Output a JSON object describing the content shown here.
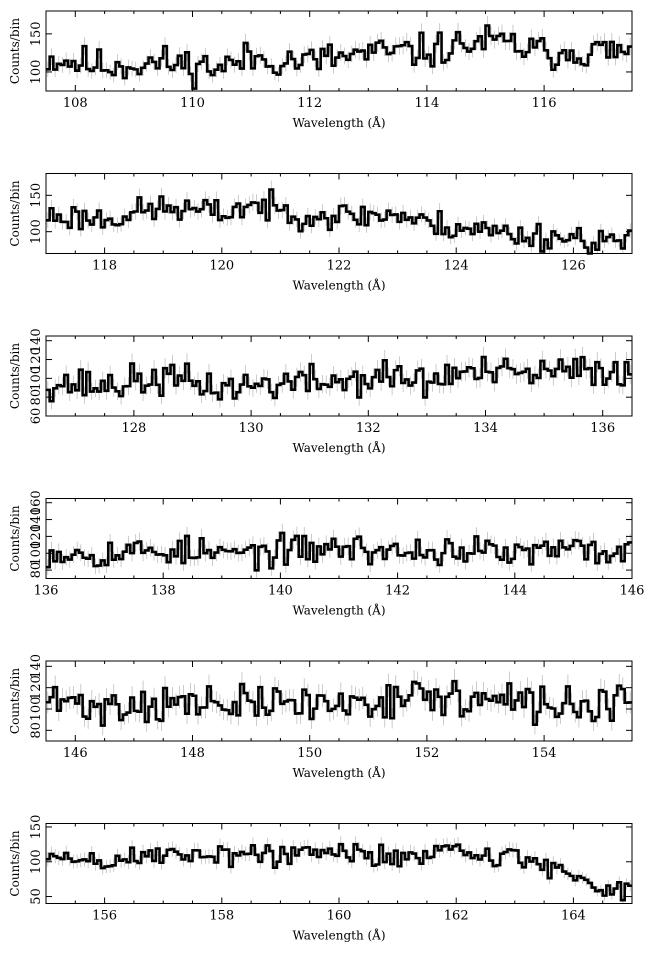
{
  "colors": {
    "line": "#000000",
    "error_bar": "#b5b5b5",
    "background": "#ffffff"
  },
  "chart_data": [
    {
      "type": "line",
      "style": "step",
      "xlabel": "Wavelength (Å)",
      "ylabel": "Counts/bin",
      "xlim": [
        107.5,
        117.5
      ],
      "ylim": [
        75,
        180
      ],
      "xticks": [
        108,
        110,
        112,
        114,
        116
      ],
      "yticks": [
        100,
        150
      ],
      "bin_width": 0.0625,
      "error_bars": true,
      "anchors": [
        [
          107.5,
          118
        ],
        [
          108.5,
          108
        ],
        [
          109.5,
          112
        ],
        [
          110.5,
          106
        ],
        [
          111.0,
          118
        ],
        [
          112.0,
          114
        ],
        [
          113.0,
          124
        ],
        [
          114.0,
          127
        ],
        [
          115.0,
          140
        ],
        [
          115.5,
          135
        ],
        [
          116.0,
          124
        ],
        [
          116.5,
          128
        ],
        [
          117.0,
          127
        ],
        [
          117.5,
          125
        ]
      ],
      "noise": 14,
      "seed": 11
    },
    {
      "type": "line",
      "style": "step",
      "xlabel": "Wavelength (Å)",
      "ylabel": "Counts/bin",
      "xlim": [
        117,
        127
      ],
      "ylim": [
        70,
        180
      ],
      "xticks": [
        118,
        120,
        122,
        124,
        126
      ],
      "yticks": [
        100,
        150
      ],
      "bin_width": 0.0625,
      "error_bars": true,
      "anchors": [
        [
          117.0,
          122
        ],
        [
          118.0,
          118
        ],
        [
          119.0,
          133
        ],
        [
          120.0,
          125
        ],
        [
          120.5,
          138
        ],
        [
          121.0,
          128
        ],
        [
          122.0,
          121
        ],
        [
          123.0,
          124
        ],
        [
          123.5,
          110
        ],
        [
          124.0,
          108
        ],
        [
          125.0,
          96
        ],
        [
          126.0,
          92
        ],
        [
          127.0,
          84
        ]
      ],
      "noise": 12,
      "seed": 23
    },
    {
      "type": "line",
      "style": "step",
      "xlabel": "Wavelength (Å)",
      "ylabel": "Counts/bin",
      "xlim": [
        126.5,
        136.5
      ],
      "ylim": [
        60,
        145
      ],
      "xticks": [
        128,
        130,
        132,
        134,
        136
      ],
      "yticks": [
        60,
        80,
        100,
        120,
        140
      ],
      "bin_width": 0.0625,
      "error_bars": true,
      "anchors": [
        [
          126.5,
          96
        ],
        [
          127.5,
          92
        ],
        [
          128.5,
          100
        ],
        [
          129.5,
          90
        ],
        [
          130.5,
          95
        ],
        [
          131.5,
          97
        ],
        [
          132.5,
          102
        ],
        [
          133.0,
          95
        ],
        [
          133.5,
          106
        ],
        [
          134.5,
          104
        ],
        [
          135.5,
          107
        ],
        [
          136.5,
          110
        ]
      ],
      "noise": 11,
      "seed": 37
    },
    {
      "type": "line",
      "style": "step",
      "xlabel": "Wavelength (Å)",
      "ylabel": "Counts/bin",
      "xlim": [
        136,
        146
      ],
      "ylim": [
        70,
        165
      ],
      "xticks": [
        136,
        138,
        140,
        142,
        144,
        146
      ],
      "yticks": [
        80,
        100,
        120,
        140,
        160
      ],
      "bin_width": 0.0625,
      "error_bars": true,
      "anchors": [
        [
          136.0,
          102
        ],
        [
          137.0,
          100
        ],
        [
          138.0,
          104
        ],
        [
          139.0,
          99
        ],
        [
          140.0,
          102
        ],
        [
          141.0,
          107
        ],
        [
          142.0,
          101
        ],
        [
          143.0,
          104
        ],
        [
          144.0,
          99
        ],
        [
          145.0,
          104
        ],
        [
          146.0,
          100
        ]
      ],
      "noise": 11,
      "seed": 53
    },
    {
      "type": "line",
      "style": "step",
      "xlabel": "Wavelength (Å)",
      "ylabel": "Counts/bin",
      "xlim": [
        145.5,
        155.5
      ],
      "ylim": [
        70,
        145
      ],
      "xticks": [
        146,
        148,
        150,
        152,
        154
      ],
      "yticks": [
        80,
        100,
        120,
        140
      ],
      "bin_width": 0.0625,
      "error_bars": true,
      "anchors": [
        [
          145.5,
          108
        ],
        [
          146.5,
          102
        ],
        [
          147.5,
          106
        ],
        [
          148.5,
          103
        ],
        [
          149.5,
          106
        ],
        [
          150.5,
          104
        ],
        [
          151.5,
          112
        ],
        [
          152.5,
          110
        ],
        [
          153.5,
          105
        ],
        [
          154.5,
          103
        ],
        [
          155.5,
          106
        ]
      ],
      "noise": 11,
      "seed": 71
    },
    {
      "type": "line",
      "style": "step",
      "xlabel": "Wavelength (Å)",
      "ylabel": "Counts/bin",
      "xlim": [
        155,
        165
      ],
      "ylim": [
        40,
        155
      ],
      "xticks": [
        156,
        158,
        160,
        162,
        164
      ],
      "yticks": [
        50,
        100,
        150
      ],
      "bin_width": 0.0625,
      "error_bars": true,
      "anchors": [
        [
          155.0,
          106
        ],
        [
          156.0,
          100
        ],
        [
          157.0,
          110
        ],
        [
          158.0,
          112
        ],
        [
          159.0,
          110
        ],
        [
          160.0,
          112
        ],
        [
          161.0,
          108
        ],
        [
          162.0,
          118
        ],
        [
          163.0,
          104
        ],
        [
          163.5,
          97
        ],
        [
          164.0,
          80
        ],
        [
          164.5,
          64
        ],
        [
          165.0,
          60
        ]
      ],
      "noise": 11,
      "seed": 89
    }
  ]
}
